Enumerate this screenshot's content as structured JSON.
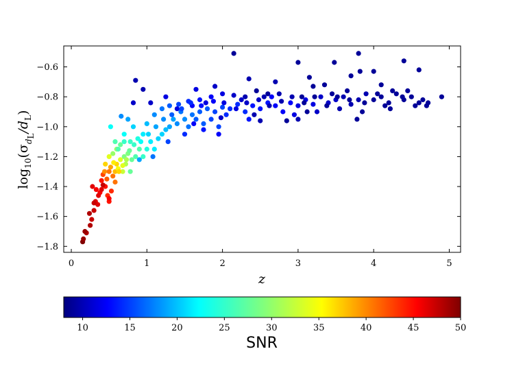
{
  "chart_data": {
    "type": "scatter",
    "xlabel": "z",
    "ylabel": {
      "prefix": "log",
      "prefix_sub": "10",
      "open": "(σ",
      "sigma_sub": "d",
      "sigma_subsub": "L",
      "mid": "/d",
      "d_sub": "L",
      "close": ")"
    },
    "xlim": [
      -0.1,
      5.15
    ],
    "ylim": [
      -1.84,
      -0.46
    ],
    "xticks": [
      0,
      1,
      2,
      3,
      4,
      5
    ],
    "xtick_labels": [
      "0",
      "1",
      "2",
      "3",
      "4",
      "5"
    ],
    "yticks": [
      -1.8,
      -1.6,
      -1.4,
      -1.2,
      -1.0,
      -0.8,
      -0.6
    ],
    "ytick_labels": [
      "−1.8",
      "−1.6",
      "−1.4",
      "−1.2",
      "−1.0",
      "−0.8",
      "−0.6"
    ],
    "grid": false,
    "colorbar": {
      "label": "SNR",
      "colormap": "jet",
      "range": [
        8,
        50
      ],
      "ticks": [
        10,
        15,
        20,
        25,
        30,
        35,
        40,
        45,
        50
      ],
      "tick_labels": [
        "10",
        "15",
        "20",
        "25",
        "30",
        "35",
        "40",
        "45",
        "50"
      ]
    },
    "points": [
      [
        0.15,
        -1.77,
        50
      ],
      [
        0.16,
        -1.75,
        49
      ],
      [
        0.2,
        -1.71,
        48
      ],
      [
        0.25,
        -1.66,
        48
      ],
      [
        0.27,
        -1.62,
        47
      ],
      [
        0.3,
        -1.56,
        47
      ],
      [
        0.32,
        -1.5,
        46
      ],
      [
        0.35,
        -1.52,
        46
      ],
      [
        0.28,
        -1.4,
        46
      ],
      [
        0.33,
        -1.42,
        45
      ],
      [
        0.38,
        -1.44,
        45
      ],
      [
        0.4,
        -1.36,
        44
      ],
      [
        0.45,
        -1.4,
        44
      ],
      [
        0.5,
        -1.5,
        44
      ],
      [
        0.48,
        -1.46,
        43
      ],
      [
        0.42,
        -1.32,
        42
      ],
      [
        0.47,
        -1.35,
        41
      ],
      [
        0.5,
        -1.3,
        40
      ],
      [
        0.55,
        -1.33,
        40
      ],
      [
        0.44,
        -1.3,
        39
      ],
      [
        0.52,
        -1.27,
        38
      ],
      [
        0.58,
        -1.3,
        37
      ],
      [
        0.6,
        -1.25,
        36
      ],
      [
        0.45,
        -1.25,
        36
      ],
      [
        0.56,
        -1.24,
        35
      ],
      [
        0.62,
        -1.28,
        34
      ],
      [
        0.65,
        -1.22,
        33
      ],
      [
        0.5,
        -1.2,
        33
      ],
      [
        0.68,
        -1.3,
        32
      ],
      [
        0.72,
        -1.25,
        31
      ],
      [
        0.55,
        -1.18,
        30
      ],
      [
        0.6,
        -1.15,
        30
      ],
      [
        0.7,
        -1.2,
        29
      ],
      [
        0.75,
        -1.18,
        29
      ],
      [
        0.8,
        -1.22,
        28
      ],
      [
        0.65,
        -1.12,
        28
      ],
      [
        0.85,
        -1.2,
        27
      ],
      [
        0.9,
        -1.15,
        27
      ],
      [
        0.58,
        -1.1,
        27
      ],
      [
        0.78,
        -1.1,
        26
      ],
      [
        0.95,
        -1.2,
        26
      ],
      [
        1.0,
        -1.15,
        25
      ],
      [
        0.88,
        -1.08,
        25
      ],
      [
        0.52,
        -1.0,
        24
      ],
      [
        0.7,
        -1.05,
        24
      ],
      [
        1.05,
        -1.1,
        23
      ],
      [
        0.95,
        -1.05,
        23
      ],
      [
        1.1,
        -1.15,
        23
      ],
      [
        0.82,
        -1.0,
        22
      ],
      [
        1.15,
        -1.08,
        22
      ],
      [
        1.2,
        -1.05,
        22
      ],
      [
        1.0,
        -0.98,
        21
      ],
      [
        1.25,
        -1.02,
        21
      ],
      [
        1.3,
        -1.0,
        20
      ],
      [
        0.75,
        -0.95,
        20
      ],
      [
        1.35,
        -0.95,
        20
      ],
      [
        1.1,
        -0.92,
        19
      ],
      [
        1.4,
        -0.98,
        19
      ],
      [
        1.5,
        -0.95,
        19
      ],
      [
        0.66,
        -0.93,
        19
      ],
      [
        1.45,
        -0.9,
        18
      ],
      [
        1.6,
        -0.92,
        18
      ],
      [
        1.55,
        -1.0,
        18
      ],
      [
        1.2,
        -0.88,
        18
      ],
      [
        1.7,
        -0.9,
        17
      ],
      [
        1.65,
        -0.95,
        17
      ],
      [
        1.8,
        -0.88,
        17
      ],
      [
        1.75,
        -0.98,
        17
      ],
      [
        1.3,
        -0.86,
        17
      ],
      [
        1.9,
        -0.9,
        16
      ],
      [
        1.85,
        -0.95,
        16
      ],
      [
        2.0,
        -0.87,
        16
      ],
      [
        1.95,
        -1.0,
        16
      ],
      [
        1.42,
        -0.85,
        16
      ],
      [
        2.1,
        -0.88,
        15
      ],
      [
        2.2,
        -0.85,
        15
      ],
      [
        2.05,
        -0.92,
        15
      ],
      [
        2.3,
        -0.9,
        15
      ],
      [
        1.55,
        -0.83,
        15
      ],
      [
        2.4,
        -0.86,
        14
      ],
      [
        2.5,
        -0.88,
        14
      ],
      [
        2.35,
        -0.95,
        14
      ],
      [
        2.6,
        -0.84,
        14
      ],
      [
        1.7,
        -0.82,
        14
      ],
      [
        2.7,
        -0.86,
        13
      ],
      [
        2.8,
        -0.9,
        13
      ],
      [
        2.65,
        -0.8,
        13
      ],
      [
        2.9,
        -0.84,
        13
      ],
      [
        1.85,
        -0.8,
        13
      ],
      [
        3.0,
        -0.86,
        12
      ],
      [
        3.1,
        -0.82,
        12
      ],
      [
        2.95,
        -0.92,
        12
      ],
      [
        3.2,
        -0.85,
        12
      ],
      [
        2.0,
        -0.78,
        12
      ],
      [
        3.3,
        -0.8,
        11
      ],
      [
        3.4,
        -0.84,
        11
      ],
      [
        3.25,
        -0.9,
        11
      ],
      [
        3.5,
        -0.82,
        11
      ],
      [
        2.15,
        -0.79,
        11
      ],
      [
        3.6,
        -0.8,
        10
      ],
      [
        3.7,
        -0.85,
        10
      ],
      [
        3.55,
        -0.88,
        10
      ],
      [
        3.8,
        -0.82,
        10
      ],
      [
        2.3,
        -0.8,
        10
      ],
      [
        3.9,
        -0.78,
        10
      ],
      [
        4.0,
        -0.82,
        9
      ],
      [
        3.85,
        -0.9,
        9
      ],
      [
        4.1,
        -0.8,
        9
      ],
      [
        2.45,
        -0.76,
        9
      ],
      [
        4.2,
        -0.84,
        9
      ],
      [
        4.3,
        -0.78,
        9
      ],
      [
        4.15,
        -0.86,
        9
      ],
      [
        4.4,
        -0.82,
        9
      ],
      [
        2.6,
        -0.78,
        9
      ],
      [
        4.5,
        -0.8,
        9
      ],
      [
        4.6,
        -0.84,
        9
      ],
      [
        4.45,
        -0.76,
        9
      ],
      [
        4.7,
        -0.86,
        9
      ],
      [
        4.9,
        -0.8,
        9
      ],
      [
        4.65,
        -0.82,
        9
      ],
      [
        0.85,
        -0.69,
        10
      ],
      [
        0.95,
        -0.75,
        10
      ],
      [
        0.82,
        -0.84,
        11
      ],
      [
        1.05,
        -0.84,
        11
      ],
      [
        1.25,
        -0.8,
        12
      ],
      [
        1.65,
        -0.75,
        12
      ],
      [
        1.9,
        -0.73,
        11
      ],
      [
        2.15,
        -0.51,
        9
      ],
      [
        2.35,
        -0.68,
        10
      ],
      [
        2.7,
        -0.7,
        10
      ],
      [
        3.0,
        -0.57,
        9
      ],
      [
        3.15,
        -0.67,
        9
      ],
      [
        3.2,
        -0.73,
        9
      ],
      [
        3.35,
        -0.72,
        9
      ],
      [
        3.48,
        -0.57,
        9
      ],
      [
        3.7,
        -0.66,
        9
      ],
      [
        3.8,
        -0.51,
        9
      ],
      [
        3.82,
        -0.63,
        9
      ],
      [
        4.0,
        -0.63,
        9
      ],
      [
        4.1,
        -0.72,
        9
      ],
      [
        4.4,
        -0.56,
        9
      ],
      [
        4.6,
        -0.62,
        9
      ],
      [
        3.78,
        -0.95,
        9
      ],
      [
        2.85,
        -0.96,
        9
      ],
      [
        3.0,
        -0.95,
        10
      ],
      [
        2.5,
        -0.96,
        10
      ],
      [
        1.95,
        -1.05,
        13
      ],
      [
        1.75,
        -1.02,
        14
      ],
      [
        1.5,
        -1.05,
        15
      ],
      [
        1.28,
        -1.1,
        16
      ],
      [
        1.08,
        -1.2,
        18
      ],
      [
        0.9,
        -1.22,
        20
      ],
      [
        0.78,
        -1.3,
        28
      ],
      [
        0.7,
        -1.1,
        26
      ],
      [
        0.62,
        -1.15,
        27
      ],
      [
        1.4,
        -0.88,
        12
      ],
      [
        1.6,
        -0.86,
        13
      ],
      [
        1.78,
        -0.84,
        12
      ],
      [
        2.25,
        -0.82,
        11
      ],
      [
        2.55,
        -0.8,
        10
      ],
      [
        2.75,
        -0.78,
        10
      ],
      [
        3.05,
        -0.8,
        9
      ],
      [
        3.45,
        -0.78,
        9
      ],
      [
        3.65,
        -0.76,
        9
      ],
      [
        4.25,
        -0.76,
        9
      ],
      [
        0.42,
        -1.39,
        47
      ],
      [
        0.4,
        -1.42,
        46
      ],
      [
        0.36,
        -1.46,
        46
      ],
      [
        0.3,
        -1.51,
        47
      ],
      [
        0.24,
        -1.58,
        48
      ],
      [
        0.18,
        -1.7,
        49
      ],
      [
        0.53,
        -1.43,
        43
      ],
      [
        0.5,
        -1.48,
        45
      ],
      [
        0.58,
        -1.37,
        40
      ],
      [
        0.63,
        -1.3,
        36
      ],
      [
        0.68,
        -1.26,
        33
      ],
      [
        0.73,
        -1.22,
        31
      ],
      [
        0.77,
        -1.16,
        28
      ],
      [
        0.83,
        -1.12,
        26
      ],
      [
        0.92,
        -1.1,
        24
      ],
      [
        1.02,
        -1.05,
        22
      ],
      [
        1.12,
        -1.0,
        20
      ],
      [
        1.22,
        -0.95,
        19
      ],
      [
        1.33,
        -0.92,
        17
      ],
      [
        1.46,
        -0.88,
        16
      ],
      [
        1.58,
        -0.84,
        15
      ],
      [
        1.72,
        -0.86,
        14
      ],
      [
        1.88,
        -0.83,
        13
      ],
      [
        2.02,
        -0.84,
        12
      ],
      [
        2.18,
        -0.88,
        12
      ],
      [
        2.32,
        -0.84,
        11
      ],
      [
        2.48,
        -0.82,
        11
      ],
      [
        2.62,
        -0.86,
        10
      ],
      [
        2.78,
        -0.83,
        10
      ],
      [
        2.92,
        -0.8,
        10
      ],
      [
        3.08,
        -0.84,
        9
      ],
      [
        3.22,
        -0.8,
        9
      ],
      [
        3.38,
        -0.86,
        9
      ],
      [
        3.52,
        -0.8,
        9
      ],
      [
        3.68,
        -0.82,
        9
      ],
      [
        3.88,
        -0.84,
        9
      ],
      [
        4.05,
        -0.78,
        9
      ],
      [
        4.22,
        -0.88,
        9
      ],
      [
        4.38,
        -0.8,
        9
      ],
      [
        4.55,
        -0.86,
        9
      ],
      [
        4.72,
        -0.84,
        9
      ],
      [
        3.12,
        -0.9,
        9
      ],
      [
        2.42,
        -0.92,
        10
      ],
      [
        1.98,
        -0.94,
        11
      ],
      [
        1.62,
        -0.98,
        13
      ]
    ]
  }
}
